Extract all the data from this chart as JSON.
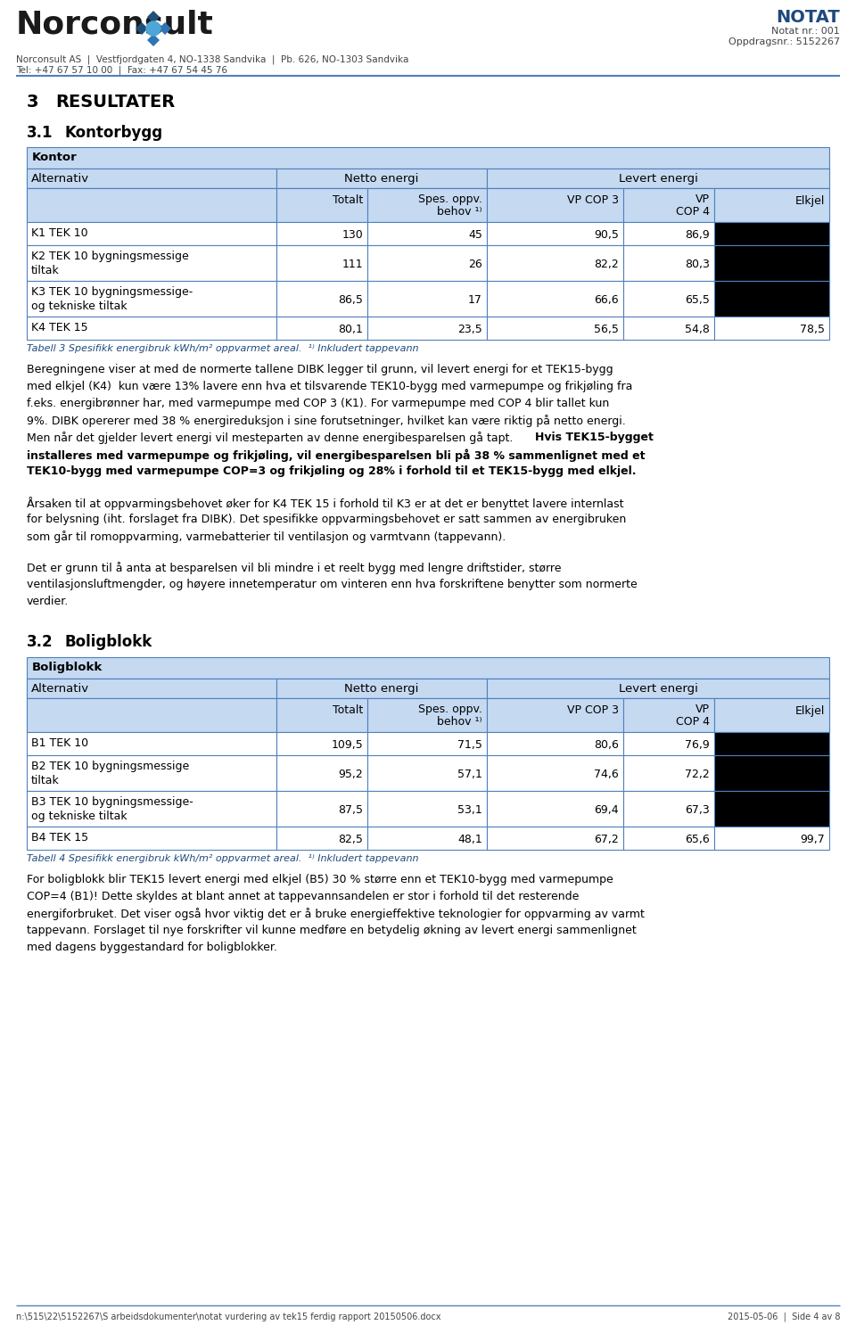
{
  "header_address": "Norconsult AS  |  Vestfjordgaten 4, NO-1338 Sandvika  |  Pb. 626, NO-1303 Sandvika",
  "header_tel": "Tel: +47 67 57 10 00  |  Fax: +47 67 54 45 76",
  "header_notat": "NOTAT",
  "header_notat_nr": "Notat nr.: 001",
  "header_oppdrag": "Oppdragsnr.: 5152267",
  "table1_title": "Kontor",
  "table2_title": "Boligblokk",
  "table1_rows": [
    [
      "K1 TEK 10",
      "130",
      "45",
      "90,5",
      "86,9",
      ""
    ],
    [
      "K2 TEK 10 bygningsmessige\ntiltak",
      "111",
      "26",
      "82,2",
      "80,3",
      ""
    ],
    [
      "K3 TEK 10 bygningsmessige-\nog tekniske tiltak",
      "86,5",
      "17",
      "66,6",
      "65,5",
      ""
    ],
    [
      "K4 TEK 15",
      "80,1",
      "23,5",
      "56,5",
      "54,8",
      "78,5"
    ]
  ],
  "table1_caption": "Tabell 3 Spesifikk energibruk kWh/m² oppvarmet areal.  ¹⁾ Inkludert tappevann",
  "table2_rows": [
    [
      "B1 TEK 10",
      "109,5",
      "71,5",
      "80,6",
      "76,9",
      ""
    ],
    [
      "B2 TEK 10 bygningsmessige\ntiltak",
      "95,2",
      "57,1",
      "74,6",
      "72,2",
      ""
    ],
    [
      "B3 TEK 10 bygningsmessige-\nog tekniske tiltak",
      "87,5",
      "53,1",
      "69,4",
      "67,3",
      ""
    ],
    [
      "B4 TEK 15",
      "82,5",
      "48,1",
      "67,2",
      "65,6",
      "99,7"
    ]
  ],
  "table2_caption": "Tabell 4 Spesifikk energibruk kWh/m² oppvarmet areal.  ¹⁾ Inkludert tappevann",
  "footer_path": "n:\\515\\22\\5152267\\S arbeidsdokumenter\\notat vurdering av tek15 ferdig rapport 20150506.docx",
  "footer_date": "2015-05-06  |  Side 4 av 8",
  "header_bg": "#c5d9f1",
  "border_color": "#4f81bd",
  "black": "#000000",
  "white": "#ffffff",
  "blue_text": "#1f497d",
  "dark_text": "#1a1a1a",
  "gray_text": "#444444"
}
